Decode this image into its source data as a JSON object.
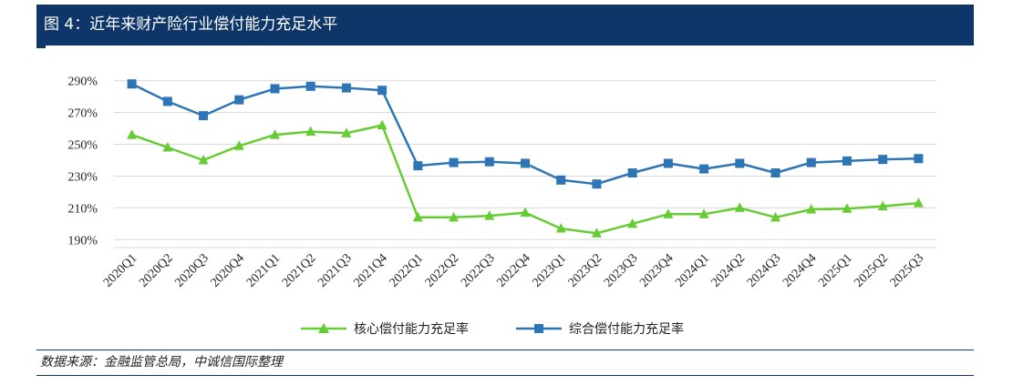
{
  "header": {
    "title": "图 4：近年来财产险行业偿付能力充足水平"
  },
  "source": "数据来源：金融监管总局，中诚信国际整理",
  "chart_data": {
    "type": "line",
    "categories": [
      "2020Q1",
      "2020Q2",
      "2020Q3",
      "2020Q4",
      "2021Q1",
      "2021Q2",
      "2021Q3",
      "2021Q4",
      "2022Q1",
      "2022Q2",
      "2022Q3",
      "2022Q4",
      "2023Q1",
      "2023Q2",
      "2023Q3",
      "2023Q4",
      "2024Q1",
      "2024Q2",
      "2024Q3",
      "2024Q4",
      "2025Q1",
      "2025Q2",
      "2025Q3"
    ],
    "y_ticks": [
      190,
      210,
      230,
      250,
      270,
      290
    ],
    "ylim": [
      185,
      295
    ],
    "y_unit": "%",
    "grid": true,
    "legend_position": "bottom",
    "series": [
      {
        "name": "核心偿付能力充足率",
        "color": "#66cc33",
        "marker": "triangle",
        "values": [
          256,
          248,
          240,
          249,
          256,
          258,
          257,
          262,
          204,
          204,
          205,
          207,
          197,
          194,
          200,
          206,
          206,
          210,
          204,
          209,
          209.5,
          211,
          213
        ]
      },
      {
        "name": "综合偿付能力充足率",
        "color": "#2e75b6",
        "marker": "square",
        "values": [
          288,
          277,
          268,
          278,
          285,
          286.5,
          285.5,
          284,
          236.5,
          238.5,
          239,
          238,
          227.5,
          225,
          232,
          238,
          234.5,
          238,
          232,
          238.5,
          239.5,
          240.5,
          241
        ]
      }
    ]
  }
}
